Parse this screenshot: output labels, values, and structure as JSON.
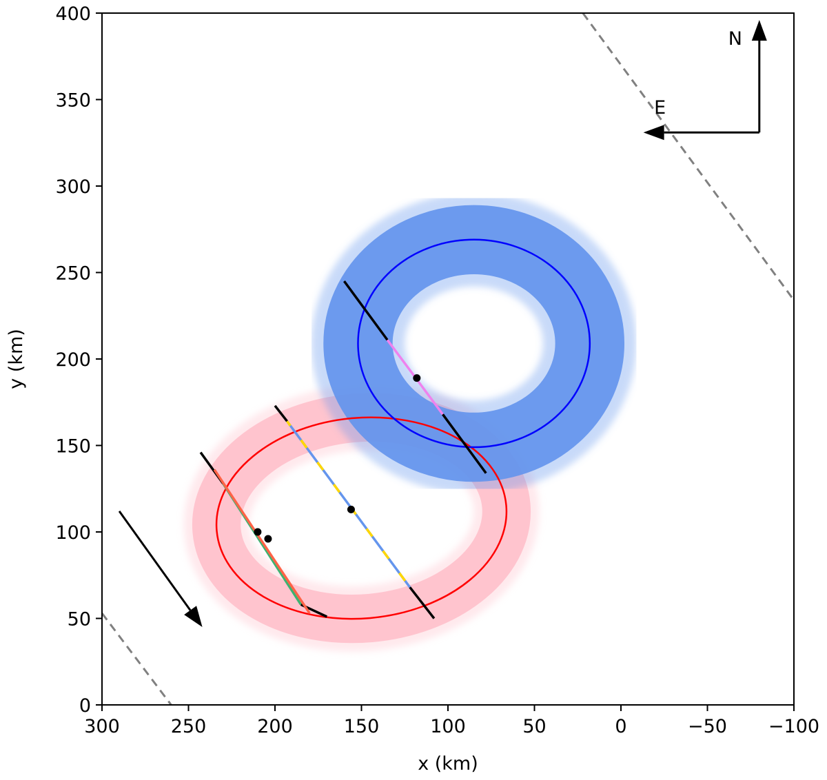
{
  "chart_data": {
    "type": "scatter",
    "title": "",
    "xlabel": "x (km)",
    "ylabel": "y (km)",
    "xlim": [
      300,
      -100
    ],
    "ylim": [
      0,
      400
    ],
    "xticks": [
      300,
      250,
      200,
      150,
      100,
      50,
      0,
      -50,
      -100
    ],
    "yticks": [
      0,
      50,
      100,
      150,
      200,
      250,
      300,
      350,
      400
    ],
    "xtick_labels": [
      "300",
      "250",
      "200",
      "150",
      "100",
      "50",
      "0",
      "−50",
      "−100"
    ],
    "ytick_labels": [
      "0",
      "50",
      "100",
      "150",
      "200",
      "250",
      "300",
      "350",
      "400"
    ],
    "grid": false,
    "ellipses": [
      {
        "name": "",
        "center": [
          150,
          108
        ],
        "semi_axes": [
          84,
          58
        ],
        "rotation_deg": -5,
        "color": "#ff0000",
        "band_color": "#ffc0cb",
        "band_width_km": 28
      },
      {
        "name": "",
        "center": [
          85,
          209
        ],
        "semi_axes": [
          67,
          60
        ],
        "rotation_deg": 0,
        "color": "#0000ff",
        "band_color": "#6495ed",
        "band_width_km": 40
      }
    ],
    "chords": [
      {
        "x": [
          243,
          170
        ],
        "y": [
          146,
          51
        ],
        "segments": [
          {
            "x": [
              243,
              230
            ],
            "y": [
              146,
              128
            ],
            "color": "#000000"
          },
          {
            "x": [
              230,
              185
            ],
            "y": [
              128,
              58
            ],
            "color": "#3cb371"
          },
          {
            "x": [
              185,
              170
            ],
            "y": [
              58,
              51
            ],
            "color": "#000000"
          }
        ]
      },
      {
        "x": [
          238,
          180
        ],
        "y": [
          140,
          53
        ],
        "segments": [
          {
            "x": [
              235,
              180
            ],
            "y": [
              136,
              53
            ],
            "color": "#ff6347"
          }
        ]
      },
      {
        "x": [
          200,
          108
        ],
        "y": [
          173,
          50
        ],
        "segments": [
          {
            "x": [
              200,
              193
            ],
            "y": [
              173,
              164
            ],
            "color": "#000000"
          },
          {
            "x": [
              193,
              122
            ],
            "y": [
              164,
              68
            ],
            "color": "#6495ed",
            "dash_color": "#ffd700"
          },
          {
            "x": [
              122,
              108
            ],
            "y": [
              68,
              50
            ],
            "color": "#000000"
          }
        ]
      },
      {
        "x": [
          160,
          78
        ],
        "y": [
          245,
          134
        ],
        "segments": [
          {
            "x": [
              160,
              135
            ],
            "y": [
              245,
              211
            ],
            "color": "#000000"
          },
          {
            "x": [
              135,
              103
            ],
            "y": [
              211,
              168
            ],
            "color": "#ee82ee"
          },
          {
            "x": [
              103,
              78
            ],
            "y": [
              168,
              134
            ],
            "color": "#000000"
          }
        ]
      }
    ],
    "points": [
      {
        "x": 210,
        "y": 100
      },
      {
        "x": 204,
        "y": 96
      },
      {
        "x": 156,
        "y": 113
      },
      {
        "x": 118,
        "y": 189
      }
    ],
    "limit_lines": [
      {
        "x": [
          22,
          -100
        ],
        "y": [
          400,
          234
        ],
        "color": "#808080",
        "style": "dashed"
      },
      {
        "x": [
          300,
          260
        ],
        "y": [
          53,
          0
        ],
        "color": "#808080",
        "style": "dashed"
      }
    ],
    "motion_arrow": {
      "from": [
        290,
        112
      ],
      "to": [
        242,
        45
      ],
      "color": "#000000"
    },
    "compass": {
      "origin": [
        -80,
        331
      ],
      "north_tip": [
        -80,
        396
      ],
      "east_tip": [
        -13,
        331
      ],
      "north_label": "N",
      "east_label": "E"
    }
  }
}
